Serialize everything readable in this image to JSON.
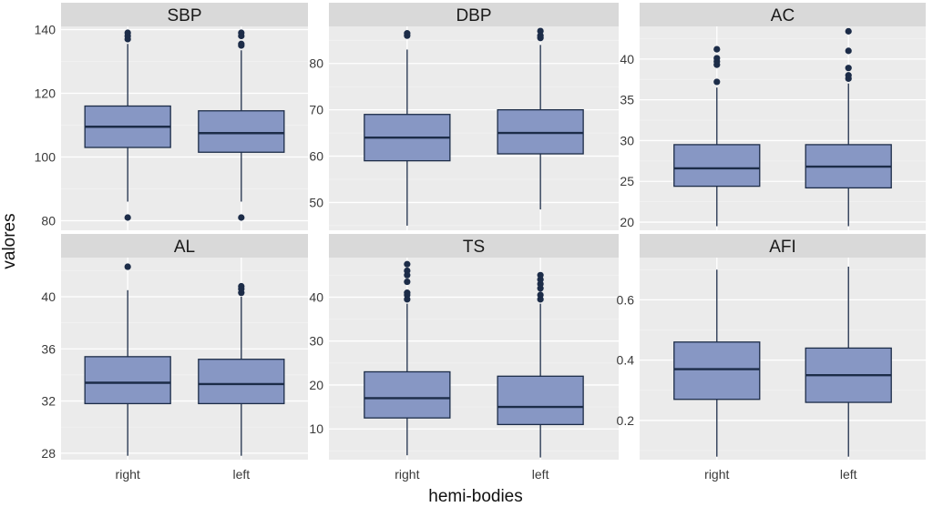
{
  "chart_data": {
    "type": "boxplot",
    "xlabel": "hemi-bodies",
    "ylabel": "valores",
    "categories": [
      "right",
      "left"
    ],
    "colors": {
      "box_fill": "#8797c4",
      "box_line": "#1c2c48",
      "panel_bg": "#ebebeb",
      "strip_bg": "#d9d9d9",
      "grid_major": "#ffffff",
      "grid_minor": "#f3f3f3"
    },
    "panels": [
      {
        "title": "SBP",
        "ylim": [
          77,
          141
        ],
        "yticks": [
          80,
          100,
          120,
          140
        ],
        "boxes": [
          {
            "category": "right",
            "whisker_low": 86,
            "q1": 103,
            "median": 109.5,
            "q3": 116,
            "whisker_high": 135.5,
            "outliers": [
              81,
              137,
              138,
              139
            ]
          },
          {
            "category": "left",
            "whisker_low": 86,
            "q1": 101.5,
            "median": 107.5,
            "q3": 114.5,
            "whisker_high": 133.5,
            "outliers": [
              81,
              135,
              135.5,
              138,
              139
            ]
          }
        ]
      },
      {
        "title": "DBP",
        "ylim": [
          44,
          88
        ],
        "yticks": [
          50,
          60,
          70,
          80
        ],
        "boxes": [
          {
            "category": "right",
            "whisker_low": 45,
            "q1": 59,
            "median": 64,
            "q3": 69,
            "whisker_high": 83,
            "outliers": [
              86,
              86.5
            ]
          },
          {
            "category": "left",
            "whisker_low": 48.5,
            "q1": 60.5,
            "median": 65,
            "q3": 70,
            "whisker_high": 84,
            "outliers": [
              85.5,
              86,
              87
            ]
          }
        ]
      },
      {
        "title": "AC",
        "ylim": [
          19,
          44
        ],
        "yticks": [
          20,
          25,
          30,
          35,
          40
        ],
        "boxes": [
          {
            "category": "right",
            "whisker_low": 19.5,
            "q1": 24.4,
            "median": 26.6,
            "q3": 29.5,
            "whisker_high": 36.5,
            "outliers": [
              37.2,
              39.3,
              39.7,
              40.1,
              41.2
            ]
          },
          {
            "category": "left",
            "whisker_low": 19.5,
            "q1": 24.2,
            "median": 26.8,
            "q3": 29.5,
            "whisker_high": 37,
            "outliers": [
              37.6,
              38,
              38.9,
              41,
              43.4
            ]
          }
        ]
      },
      {
        "title": "AL",
        "ylim": [
          27.5,
          43
        ],
        "yticks": [
          28,
          32,
          36,
          40
        ],
        "boxes": [
          {
            "category": "right",
            "whisker_low": 27.8,
            "q1": 31.8,
            "median": 33.4,
            "q3": 35.4,
            "whisker_high": 40.5,
            "outliers": [
              42.3
            ]
          },
          {
            "category": "left",
            "whisker_low": 27.8,
            "q1": 31.8,
            "median": 33.3,
            "q3": 35.2,
            "whisker_high": 40,
            "outliers": [
              40.3,
              40.6,
              40.8
            ]
          }
        ]
      },
      {
        "title": "TS",
        "ylim": [
          3,
          49
        ],
        "yticks": [
          10,
          20,
          30,
          40
        ],
        "boxes": [
          {
            "category": "right",
            "whisker_low": 4,
            "q1": 12.5,
            "median": 17,
            "q3": 23,
            "whisker_high": 38.5,
            "outliers": [
              39.5,
              40.5,
              41,
              43.5,
              45,
              46,
              47.5
            ]
          },
          {
            "category": "left",
            "whisker_low": 3.5,
            "q1": 11,
            "median": 15,
            "q3": 22,
            "whisker_high": 38.5,
            "outliers": [
              39.5,
              40.5,
              42,
              43,
              44,
              45
            ]
          }
        ]
      },
      {
        "title": "AFI",
        "ylim": [
          0.07,
          0.74
        ],
        "yticks": [
          0.2,
          0.4,
          0.6
        ],
        "boxes": [
          {
            "category": "right",
            "whisker_low": 0.08,
            "q1": 0.27,
            "median": 0.37,
            "q3": 0.46,
            "whisker_high": 0.7,
            "outliers": []
          },
          {
            "category": "left",
            "whisker_low": 0.08,
            "q1": 0.26,
            "median": 0.35,
            "q3": 0.44,
            "whisker_high": 0.71,
            "outliers": []
          }
        ]
      }
    ]
  }
}
